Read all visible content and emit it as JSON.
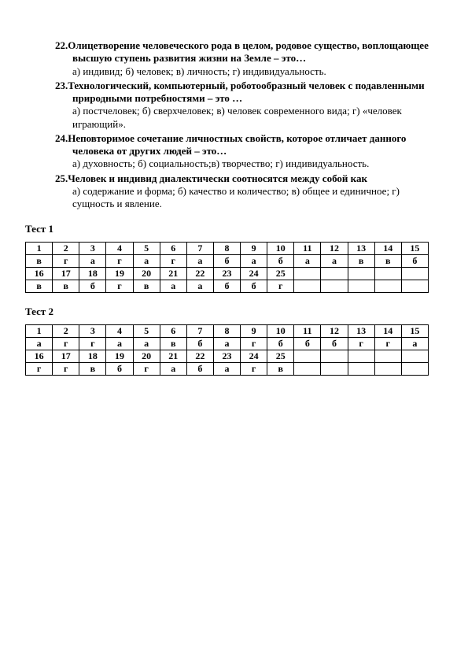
{
  "questions": [
    {
      "num": "22.",
      "text": "Олицетворение человеческого рода в целом, родовое существо, воплощающее высшую ступень развития жизни на Земле – это…",
      "answers": "а) индивид; б) человек; в) личность; г) индивидуальность."
    },
    {
      "num": "23.",
      "text": "Технологический, компьютерный, роботообразный человек с подавленными природными потребностями – это …",
      "answers": "а) постчеловек;  б) сверхчеловек;   в) человек современного вида;   г) «человек играющий»."
    },
    {
      "num": "24.",
      "text": "Неповторимое сочетание личностных свойств, которое отличает данного человека от других людей – это…",
      "answers": "а) духовность; б) социальность;в) творчество; г) индивидуальность."
    },
    {
      "num": "25.",
      "text": "Человек и индивид диалектически соотносятся между собой как",
      "answers": "а) содержание и форма;  б) качество и количество;   в) общее и единичное;    г) сущность и явление."
    }
  ],
  "tests": [
    {
      "label": "Тест 1",
      "rows": [
        [
          "1",
          "2",
          "3",
          "4",
          "5",
          "6",
          "7",
          "8",
          "9",
          "10",
          "11",
          "12",
          "13",
          "14",
          "15"
        ],
        [
          "в",
          "г",
          "а",
          "г",
          "а",
          "г",
          "а",
          "б",
          "а",
          "б",
          "а",
          "а",
          "в",
          "в",
          "б"
        ],
        [
          "16",
          "17",
          "18",
          "19",
          "20",
          "21",
          "22",
          "23",
          "24",
          "25",
          "",
          "",
          "",
          "",
          ""
        ],
        [
          "в",
          "в",
          "б",
          "г",
          "в",
          "а",
          "а",
          "б",
          "б",
          "г",
          "",
          "",
          "",
          "",
          ""
        ]
      ]
    },
    {
      "label": "Тест 2",
      "rows": [
        [
          "1",
          "2",
          "3",
          "4",
          "5",
          "6",
          "7",
          "8",
          "9",
          "10",
          "11",
          "12",
          "13",
          "14",
          "15"
        ],
        [
          "а",
          "г",
          "г",
          "а",
          "а",
          "в",
          "б",
          "а",
          "г",
          "б",
          "б",
          "б",
          "г",
          "г",
          "а"
        ],
        [
          "16",
          "17",
          "18",
          "19",
          "20",
          "21",
          "22",
          "23",
          "24",
          "25",
          "",
          "",
          "",
          "",
          ""
        ],
        [
          "г",
          "г",
          "в",
          "б",
          "г",
          "а",
          "б",
          "а",
          "г",
          "в",
          "",
          "",
          "",
          "",
          ""
        ]
      ]
    }
  ]
}
